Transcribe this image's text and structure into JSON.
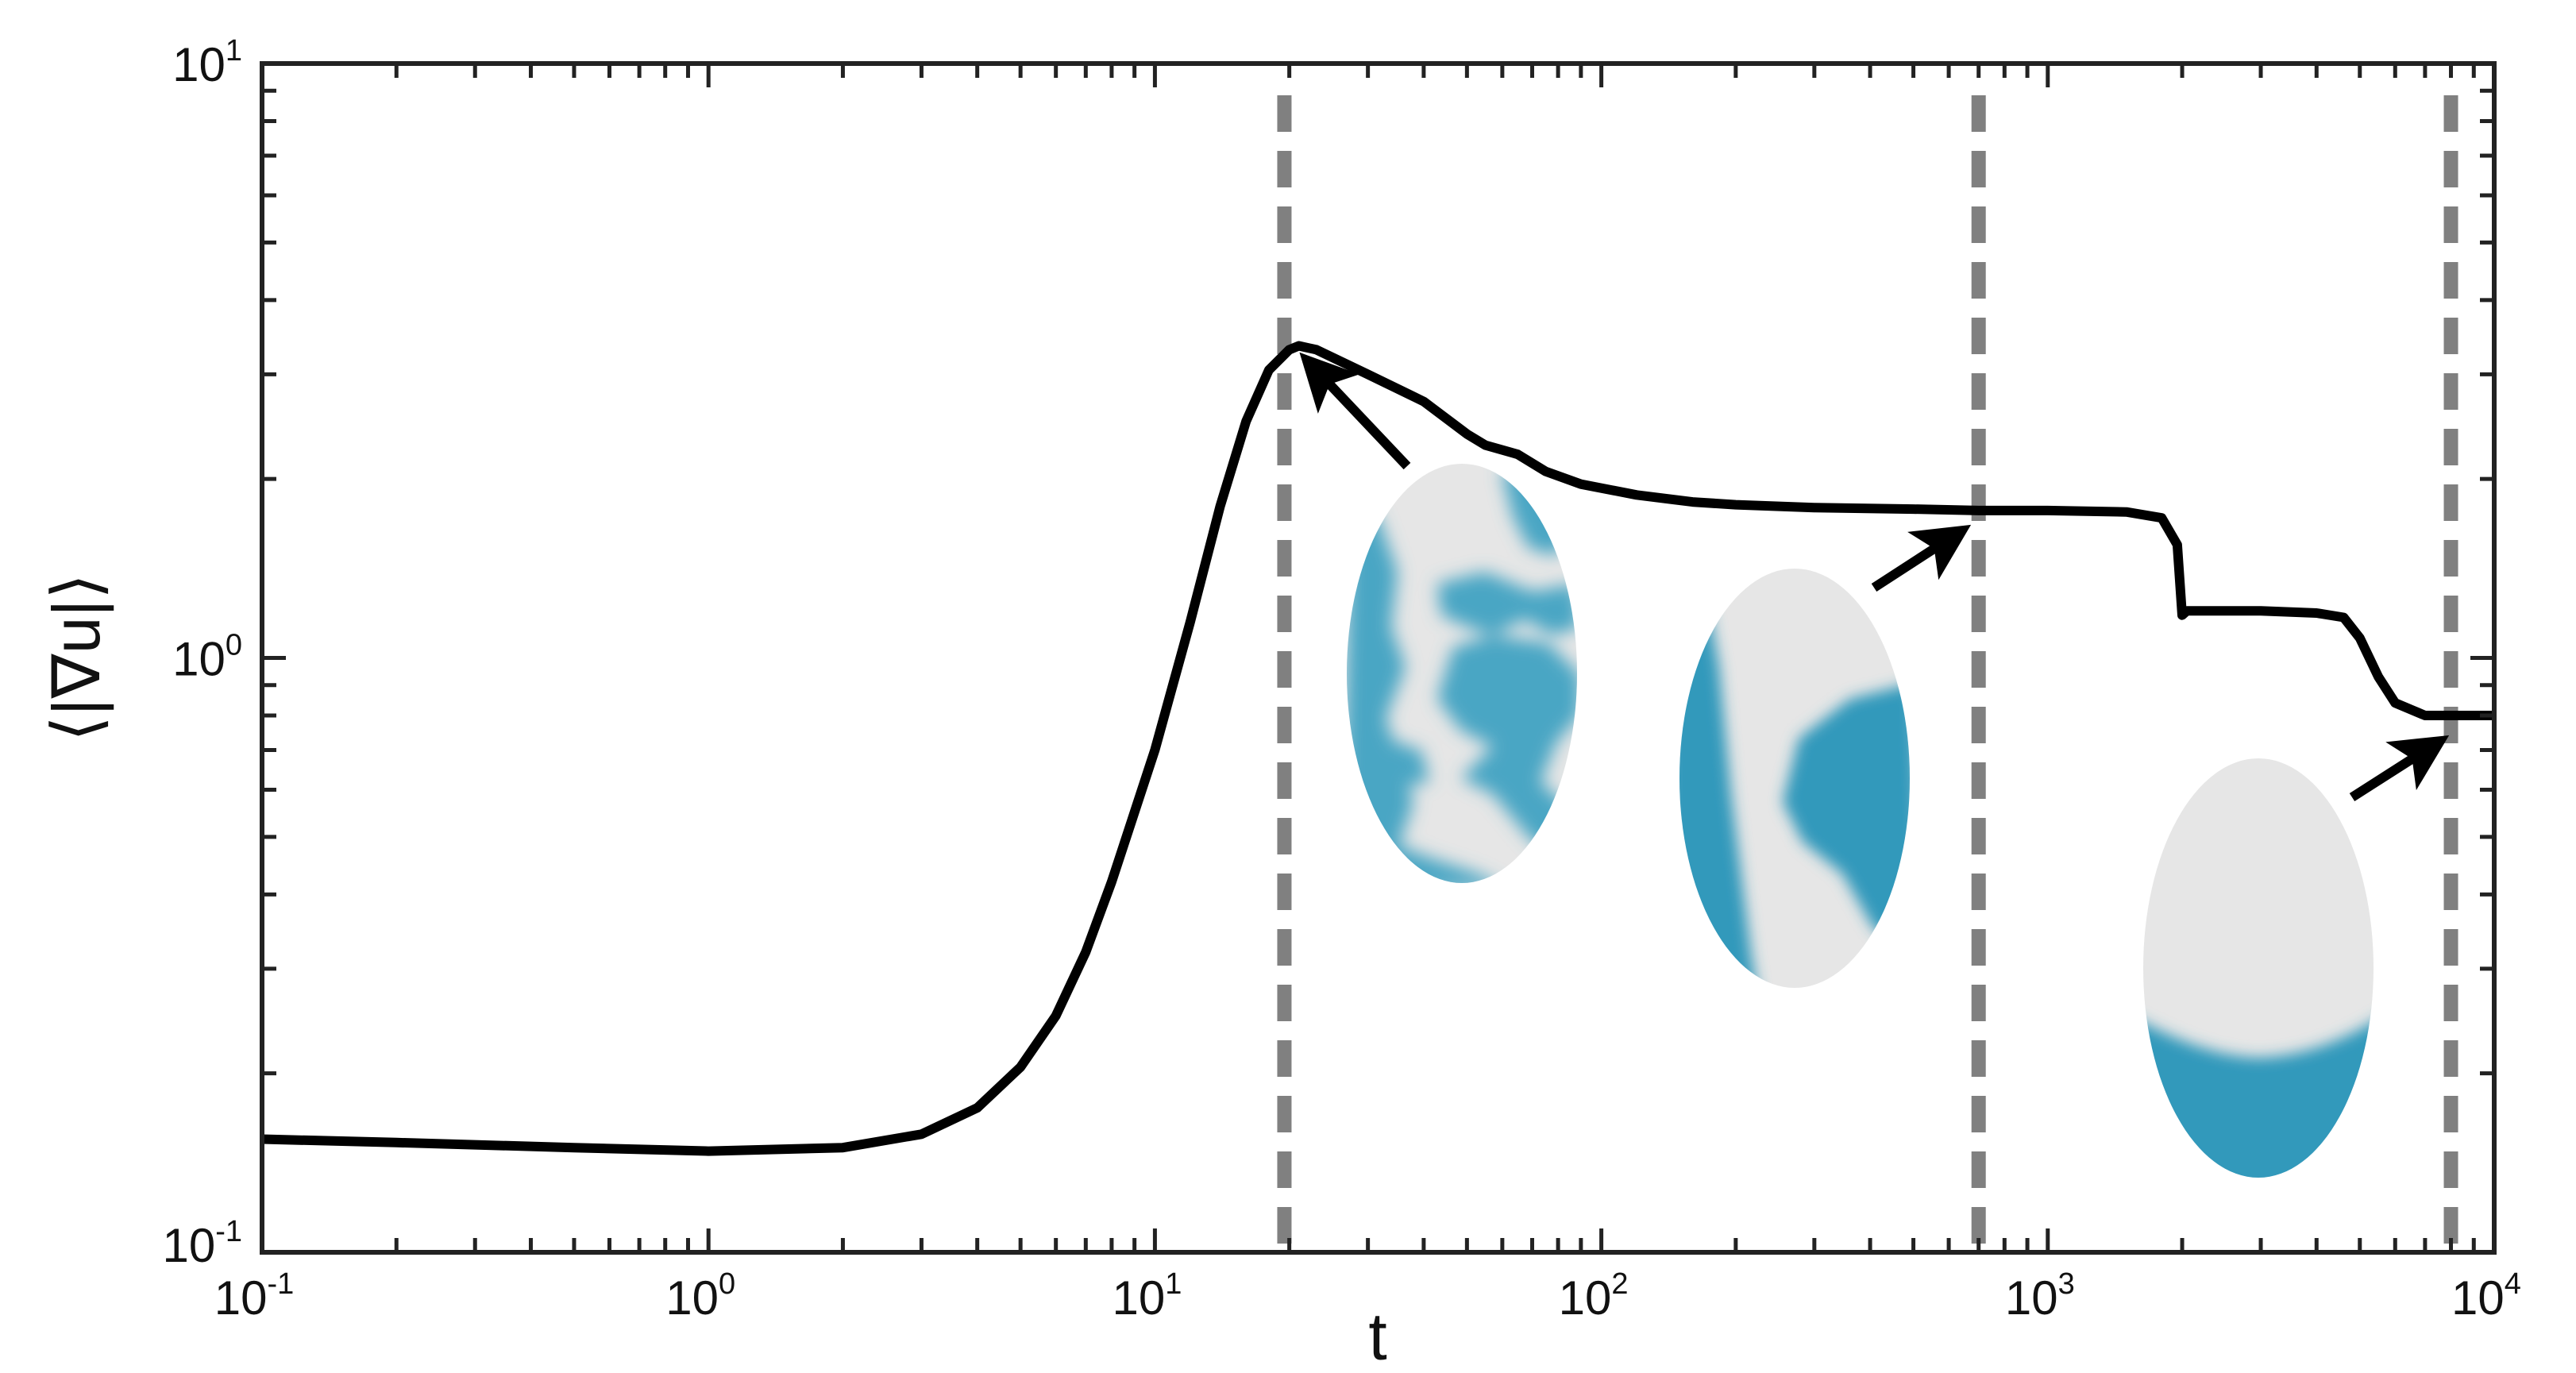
{
  "chart_data": {
    "type": "line",
    "title": "",
    "xlabel": "t",
    "ylabel": "⟨|∇u|⟩",
    "xscale": "log",
    "yscale": "log",
    "xlim": [
      0.1,
      10000
    ],
    "ylim": [
      0.1,
      10
    ],
    "grid": false,
    "legend": "none",
    "x_ticks": [
      {
        "value": 0.1,
        "base": "10",
        "exp": "-1"
      },
      {
        "value": 1,
        "base": "10",
        "exp": "0"
      },
      {
        "value": 10,
        "base": "10",
        "exp": "1"
      },
      {
        "value": 100,
        "base": "10",
        "exp": "2"
      },
      {
        "value": 1000,
        "base": "10",
        "exp": "3"
      },
      {
        "value": 10000,
        "base": "10",
        "exp": "4"
      }
    ],
    "y_ticks": [
      {
        "value": 0.1,
        "base": "10",
        "exp": "-1"
      },
      {
        "value": 1,
        "base": "10",
        "exp": "0"
      },
      {
        "value": 10,
        "base": "10",
        "exp": "1"
      }
    ],
    "series": [
      {
        "color": "#000000",
        "x": [
          0.1,
          0.2,
          0.5,
          1,
          2,
          3,
          4,
          5,
          6,
          7,
          8,
          10,
          12,
          14,
          16,
          18,
          20,
          21,
          23,
          30,
          40,
          50,
          55,
          65,
          75,
          90,
          120,
          160,
          200,
          300,
          500,
          700,
          1000,
          1500,
          1800,
          1950,
          2000,
          2050,
          3000,
          4000,
          4600,
          5000,
          5500,
          6000,
          7000,
          8000,
          10000
        ],
        "y": [
          0.155,
          0.153,
          0.15,
          0.148,
          0.15,
          0.158,
          0.175,
          0.205,
          0.25,
          0.32,
          0.42,
          0.7,
          1.15,
          1.8,
          2.5,
          3.05,
          3.3,
          3.35,
          3.3,
          3.0,
          2.7,
          2.38,
          2.28,
          2.2,
          2.06,
          1.96,
          1.88,
          1.83,
          1.81,
          1.79,
          1.78,
          1.77,
          1.77,
          1.76,
          1.72,
          1.55,
          1.18,
          1.2,
          1.2,
          1.19,
          1.17,
          1.08,
          0.93,
          0.84,
          0.8,
          0.8,
          0.8
        ]
      }
    ],
    "reference_lines": [
      {
        "axis": "x",
        "value": 19.5,
        "color": "#808080",
        "style": "dashed"
      },
      {
        "axis": "x",
        "value": 700,
        "color": "#808080",
        "style": "dashed"
      },
      {
        "axis": "x",
        "value": 8000,
        "color": "#808080",
        "style": "dashed"
      }
    ],
    "annotations": [
      {
        "type": "arrow",
        "points_to": {
          "x": 21,
          "y": 3.3
        },
        "inset": "snapshot-1"
      },
      {
        "type": "arrow",
        "points_to": {
          "x": 680,
          "y": 1.74
        },
        "inset": "snapshot-2"
      },
      {
        "type": "arrow",
        "points_to": {
          "x": 7900,
          "y": 0.78
        },
        "inset": "snapshot-3"
      }
    ],
    "insets": [
      {
        "name": "snapshot-1",
        "description_color_bg": "#e6e6e6",
        "description_color_fg": "#4aa6c4",
        "pattern": "mixed-patches"
      },
      {
        "name": "snapshot-2",
        "description_color_bg": "#e6e6e6",
        "description_color_fg": "#3399bb",
        "pattern": "two-domains"
      },
      {
        "name": "snapshot-3",
        "description_color_bg": "#e6e6e6",
        "description_color_fg": "#3399bb",
        "pattern": "bottom-cap"
      }
    ],
    "colors": {
      "curve": "#000000",
      "ref_line": "#808080",
      "axis": "#222222",
      "phase_bg": "#e6e6e6",
      "phase_fg": "#3399bb"
    }
  }
}
